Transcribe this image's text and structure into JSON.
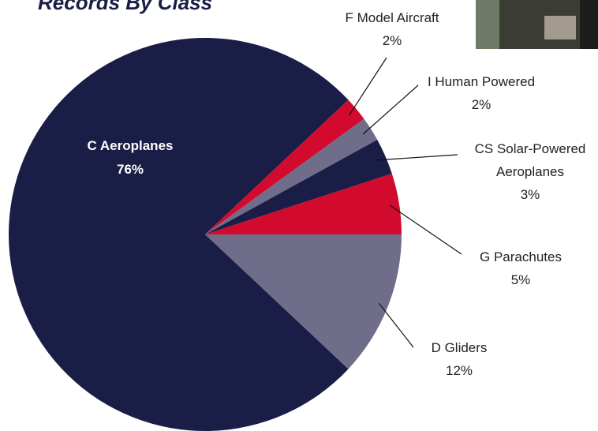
{
  "chart_data": {
    "type": "pie",
    "title": "Records By Class",
    "categories": [
      "D Gliders",
      "C Aeroplanes",
      "F Model Aircraft",
      "I Human Powered",
      "CS Solar-Powered Aeroplanes",
      "G Parachutes"
    ],
    "values": [
      12,
      76,
      2,
      2,
      3,
      5
    ],
    "value_labels": [
      "12%",
      "76%",
      "2%",
      "2%",
      "3%",
      "5%"
    ],
    "colors": [
      "#706d8a",
      "#1a1d45",
      "#d20a2e",
      "#706d8a",
      "#1a1d45",
      "#d20a2e"
    ]
  }
}
